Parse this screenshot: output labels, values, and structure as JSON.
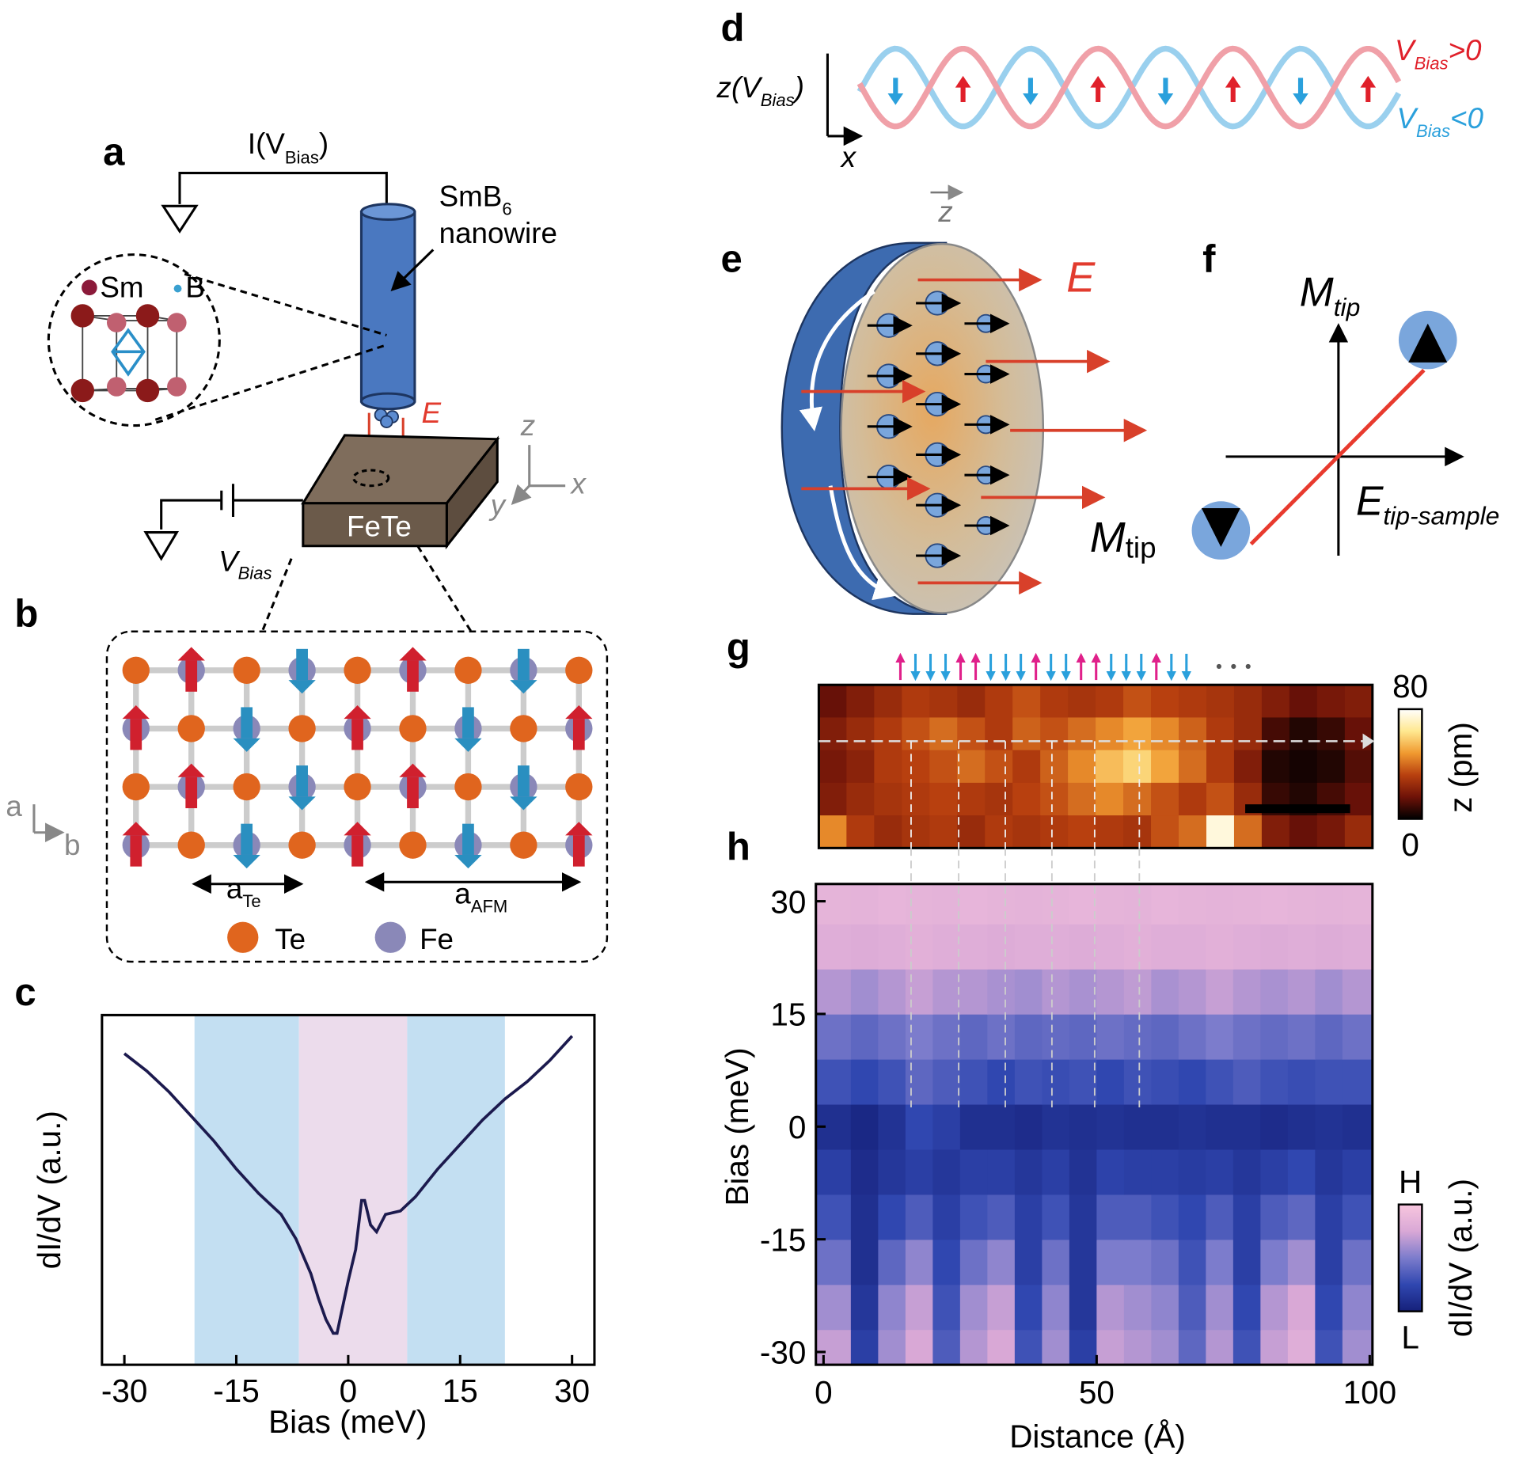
{
  "panel_labels": [
    "a",
    "b",
    "c",
    "d",
    "e",
    "f",
    "g",
    "h"
  ],
  "panel_a": {
    "current": {
      "main": "I(V",
      "sub": "Bias",
      "close": ")"
    },
    "tip": {
      "main": "SmB",
      "sub": "6",
      "second": "nanowire"
    },
    "legend": [
      "Sm",
      "B"
    ],
    "field": "E",
    "axes": [
      "z",
      "x",
      "y"
    ],
    "sample": "FeTe",
    "bias": {
      "main": "V",
      "sub": "Bias"
    }
  },
  "panel_b": {
    "axes": [
      "a",
      "b"
    ],
    "a_te": {
      "main": "a",
      "sub": "Te"
    },
    "a_afm": {
      "main": "a",
      "sub": "AFM"
    },
    "legend": [
      "Te",
      "Fe"
    ]
  },
  "panel_d": {
    "ylabel": {
      "main": "z(V",
      "sub": "Bias",
      "close": ")"
    },
    "xlabel": "x",
    "positive": {
      "main": "V",
      "sub": "Bias",
      "rest": ">0"
    },
    "negative": {
      "main": "V",
      "sub": "Bias",
      "rest": "<0"
    }
  },
  "panel_e": {
    "axis": "z",
    "field": "E",
    "moment": {
      "main": "M",
      "sub": "tip"
    }
  },
  "panel_f": {
    "ylabel": {
      "main": "M",
      "sub": "tip"
    },
    "xlabel": {
      "main": "E",
      "sub": "tip-sample"
    }
  },
  "chart_data": [
    {
      "type": "line",
      "xlabel": "Bias (meV)",
      "ylabel": "dI/dV (a.u.)",
      "color": "#1c1a4e",
      "x": [
        -30,
        -27,
        -24,
        -21,
        -18,
        -15,
        -12,
        -9,
        -7,
        -5,
        -4,
        -3,
        -2,
        -1.5,
        -1,
        0,
        1,
        1.8,
        2.2,
        3,
        3.8,
        5,
        7,
        9,
        12,
        15,
        18,
        21,
        24,
        27,
        30
      ],
      "values": [
        0.89,
        0.84,
        0.78,
        0.71,
        0.64,
        0.56,
        0.49,
        0.43,
        0.36,
        0.26,
        0.19,
        0.13,
        0.09,
        0.09,
        0.14,
        0.24,
        0.33,
        0.47,
        0.47,
        0.4,
        0.38,
        0.43,
        0.44,
        0.48,
        0.56,
        0.63,
        0.7,
        0.76,
        0.81,
        0.87,
        0.94
      ],
      "xlim": [
        -33,
        33
      ],
      "ylim": [
        0,
        1
      ],
      "xticks": [
        -30,
        -15,
        0,
        15,
        30
      ],
      "bands": [
        {
          "from": -20.6,
          "to": -6.6,
          "color": "#c3dff2"
        },
        {
          "from": -6.6,
          "to": 7.9,
          "color": "#ecdcec"
        },
        {
          "from": 7.9,
          "to": 21,
          "color": "#c3dff2"
        }
      ]
    },
    {
      "type": "heatmap",
      "colorbar_label": "z (pm)",
      "zlim": [
        0,
        80
      ],
      "zticks": [
        0,
        80
      ],
      "colormap": [
        "#000000",
        "#6e1208",
        "#b8400f",
        "#f09a30",
        "#ffe890",
        "#ffffff"
      ],
      "z": [
        [
          15,
          20,
          25,
          30,
          28,
          25,
          30,
          35,
          30,
          28,
          30,
          35,
          32,
          30,
          28,
          25,
          20,
          15,
          18,
          20
        ],
        [
          20,
          25,
          30,
          35,
          40,
          35,
          30,
          38,
          35,
          40,
          45,
          50,
          45,
          38,
          30,
          25,
          10,
          5,
          8,
          15
        ],
        [
          18,
          22,
          30,
          32,
          35,
          40,
          35,
          30,
          38,
          45,
          55,
          60,
          50,
          40,
          30,
          20,
          5,
          3,
          5,
          12
        ],
        [
          20,
          25,
          28,
          30,
          32,
          30,
          28,
          32,
          35,
          40,
          45,
          40,
          35,
          30,
          35,
          25,
          8,
          5,
          10,
          15
        ],
        [
          45,
          30,
          25,
          28,
          30,
          25,
          30,
          28,
          30,
          32,
          30,
          28,
          35,
          40,
          75,
          40,
          20,
          15,
          18,
          25
        ]
      ]
    },
    {
      "type": "heatmap",
      "xlabel": "Distance (Å)",
      "ylabel": "Bias (meV)",
      "colorbar_label": "dI/dV (a.u.)",
      "xlim": [
        -1.4,
        100.5
      ],
      "ylim": [
        -31.7,
        32.3
      ],
      "xticks": [
        0,
        50,
        100
      ],
      "yticks": [
        -30,
        -15,
        0,
        15,
        30
      ],
      "zlim": [
        0,
        1
      ],
      "zticks": [
        {
          "value": 0,
          "label": "L"
        },
        {
          "value": 1,
          "label": "H"
        }
      ],
      "colormap": [
        "#15207a",
        "#3047b0",
        "#7c7ccc",
        "#d9a8d6",
        "#f8c6de"
      ],
      "x_bins": [
        -1.4,
        5,
        10,
        15,
        20,
        25,
        30,
        35,
        40,
        45,
        50,
        55,
        60,
        65,
        70,
        75,
        80,
        85,
        90,
        95,
        100.5
      ],
      "y_bins": [
        -31.7,
        -27,
        -21,
        -15,
        -9,
        -3,
        3,
        9,
        15,
        21,
        27,
        32.3
      ],
      "z": [
        [
          0.7,
          0.2,
          0.6,
          0.75,
          0.35,
          0.65,
          0.75,
          0.3,
          0.6,
          0.2,
          0.7,
          0.65,
          0.6,
          0.4,
          0.65,
          0.3,
          0.7,
          0.8,
          0.3,
          0.6
        ],
        [
          0.6,
          0.15,
          0.55,
          0.7,
          0.3,
          0.6,
          0.7,
          0.25,
          0.55,
          0.15,
          0.65,
          0.6,
          0.55,
          0.35,
          0.6,
          0.25,
          0.65,
          0.75,
          0.25,
          0.55
        ],
        [
          0.45,
          0.1,
          0.4,
          0.55,
          0.25,
          0.45,
          0.55,
          0.2,
          0.45,
          0.15,
          0.5,
          0.5,
          0.45,
          0.3,
          0.5,
          0.2,
          0.5,
          0.6,
          0.2,
          0.45
        ],
        [
          0.3,
          0.1,
          0.25,
          0.35,
          0.2,
          0.3,
          0.35,
          0.2,
          0.3,
          0.15,
          0.35,
          0.35,
          0.3,
          0.25,
          0.35,
          0.2,
          0.35,
          0.4,
          0.2,
          0.3
        ],
        [
          0.2,
          0.08,
          0.15,
          0.2,
          0.15,
          0.2,
          0.2,
          0.15,
          0.2,
          0.12,
          0.22,
          0.2,
          0.2,
          0.18,
          0.2,
          0.15,
          0.2,
          0.25,
          0.15,
          0.2
        ],
        [
          0.1,
          0.05,
          0.12,
          0.25,
          0.2,
          0.1,
          0.1,
          0.08,
          0.12,
          0.1,
          0.12,
          0.1,
          0.1,
          0.12,
          0.1,
          0.1,
          0.08,
          0.1,
          0.12,
          0.1
        ],
        [
          0.3,
          0.25,
          0.3,
          0.4,
          0.35,
          0.3,
          0.25,
          0.3,
          0.28,
          0.3,
          0.25,
          0.3,
          0.28,
          0.25,
          0.3,
          0.35,
          0.3,
          0.28,
          0.3,
          0.3
        ],
        [
          0.45,
          0.4,
          0.45,
          0.5,
          0.45,
          0.4,
          0.45,
          0.4,
          0.42,
          0.4,
          0.45,
          0.42,
          0.4,
          0.45,
          0.5,
          0.45,
          0.42,
          0.45,
          0.4,
          0.45
        ],
        [
          0.65,
          0.6,
          0.65,
          0.7,
          0.65,
          0.65,
          0.62,
          0.6,
          0.65,
          0.62,
          0.65,
          0.68,
          0.62,
          0.65,
          0.7,
          0.65,
          0.62,
          0.65,
          0.6,
          0.65
        ],
        [
          0.8,
          0.78,
          0.8,
          0.82,
          0.8,
          0.8,
          0.78,
          0.8,
          0.8,
          0.78,
          0.8,
          0.82,
          0.8,
          0.8,
          0.82,
          0.8,
          0.78,
          0.8,
          0.78,
          0.8
        ],
        [
          0.85,
          0.84,
          0.86,
          0.85,
          0.84,
          0.86,
          0.85,
          0.84,
          0.85,
          0.86,
          0.85,
          0.84,
          0.86,
          0.85,
          0.84,
          0.85,
          0.86,
          0.85,
          0.84,
          0.85
        ]
      ]
    }
  ]
}
